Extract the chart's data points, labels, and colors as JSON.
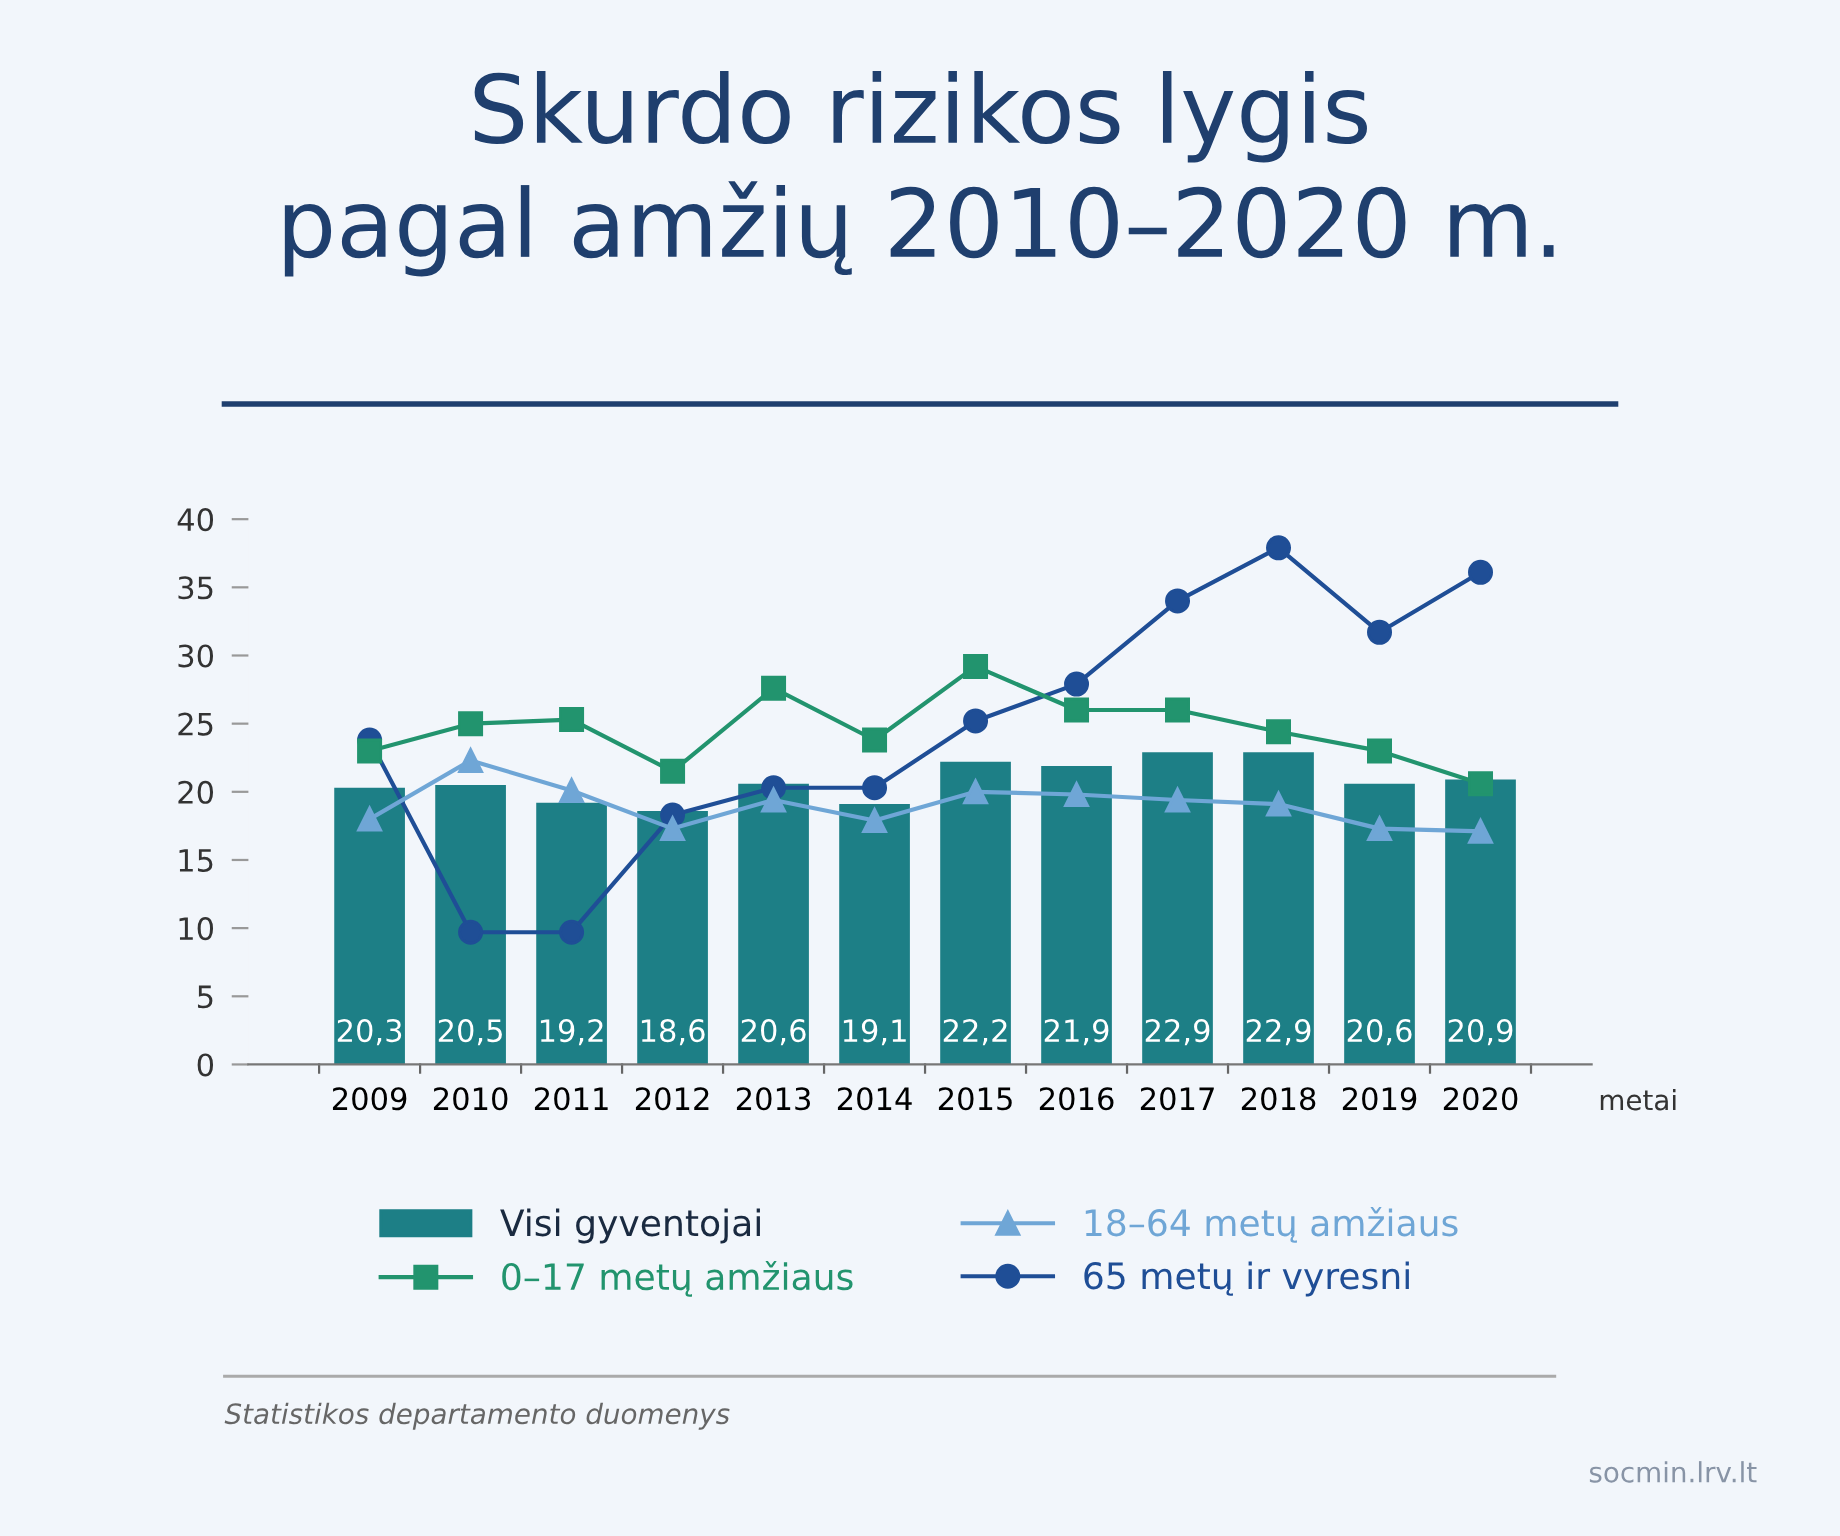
{
  "chart_data": {
    "type": "bar",
    "title": "Skurdo rizikos lygis\npagal amžių 2010–2020 m.",
    "xlabel": "metai",
    "categories": [
      "2009",
      "2010",
      "2011",
      "2012",
      "2013",
      "2014",
      "2015",
      "2016",
      "2017",
      "2018",
      "2019",
      "2020"
    ],
    "series": [
      {
        "name": "Visi gyventojai",
        "color": "#1d7f86",
        "values": [
          20.3,
          20.5,
          19.2,
          18.6,
          20.6,
          19.1,
          22.2,
          21.9,
          22.9,
          22.9,
          20.6,
          20.9
        ],
        "value_labels": [
          "20,3",
          "20,5",
          "19,2",
          "18,6",
          "20,6",
          "19,1",
          "22,2",
          "21,9",
          "22,9",
          "22,9",
          "20,6",
          "20,9"
        ]
      },
      {
        "name": "0–17 metų amžiaus",
        "type": "line",
        "marker": "square",
        "color": "#22946e",
        "values": [
          23.0,
          25.0,
          25.3,
          21.5,
          27.6,
          23.8,
          29.2,
          26.0,
          26.0,
          24.4,
          23.0,
          20.6
        ]
      },
      {
        "name": "18–64 metų amžiaus",
        "type": "line",
        "marker": "triangle",
        "color": "#6fa6d6",
        "values": [
          18.0,
          22.3,
          20.1,
          17.3,
          19.4,
          17.9,
          20.0,
          19.8,
          19.4,
          19.1,
          17.3,
          17.1
        ]
      },
      {
        "name": "65 metų ir vyresni",
        "type": "line",
        "marker": "circle",
        "color": "#1f4e96",
        "values": [
          23.8,
          9.7,
          9.7,
          18.3,
          20.3,
          20.3,
          25.2,
          27.9,
          34.0,
          37.9,
          31.7,
          36.1
        ]
      }
    ],
    "ylim": [
      0,
      40
    ],
    "yticks": [
      0,
      5,
      10,
      15,
      20,
      25,
      30,
      35,
      40
    ],
    "grid": false,
    "legend": "bottom",
    "annotations": [
      "Statistikos departamento duomenys",
      "socmin.lrv.lt"
    ]
  }
}
